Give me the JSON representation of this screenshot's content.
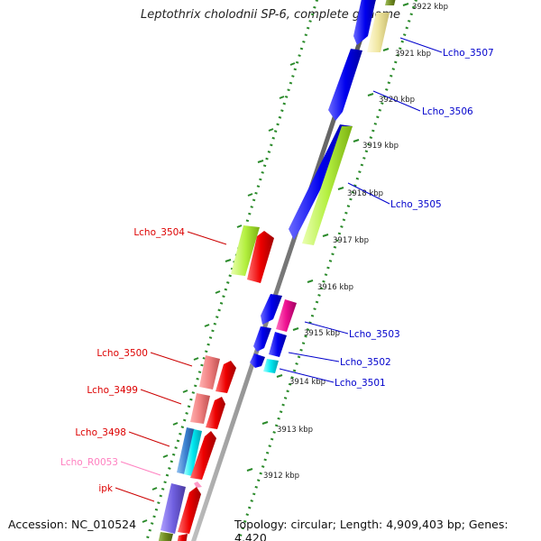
{
  "map": {
    "title": "Leptothrix cholodnii SP-6, complete genome",
    "accession": "Accession: NC_010524",
    "topology": "Topology: circular; Length: 4,909,403 bp; Genes: 4,420",
    "scale_labels": [
      "3922 kbp",
      "3921 kbp",
      "3920 kbp",
      "3919 kbp",
      "3918 kbp",
      "3917 kbp",
      "3916 kbp",
      "3915 kbp",
      "3914 kbp",
      "3913 kbp",
      "3912 kbp"
    ],
    "genes_forward": [
      {
        "label": "Lcho_3507",
        "color": "#0000cc"
      },
      {
        "label": "Lcho_3506",
        "color": "#0000cc"
      },
      {
        "label": "Lcho_3505",
        "color": "#0000cc"
      },
      {
        "label": "Lcho_3503",
        "color": "#0000cc"
      },
      {
        "label": "Lcho_3502",
        "color": "#0000cc"
      },
      {
        "label": "Lcho_3501",
        "color": "#0000cc"
      }
    ],
    "genes_reverse": [
      {
        "label": "Lcho_3504",
        "color": "#dd0000"
      },
      {
        "label": "Lcho_3500",
        "color": "#dd0000"
      },
      {
        "label": "Lcho_3499",
        "color": "#dd0000"
      },
      {
        "label": "Lcho_3498",
        "color": "#dd0000"
      },
      {
        "label": "Lcho_R0053",
        "color": "#ee88cc"
      },
      {
        "label": "ipk",
        "color": "#dd0000"
      }
    ]
  }
}
